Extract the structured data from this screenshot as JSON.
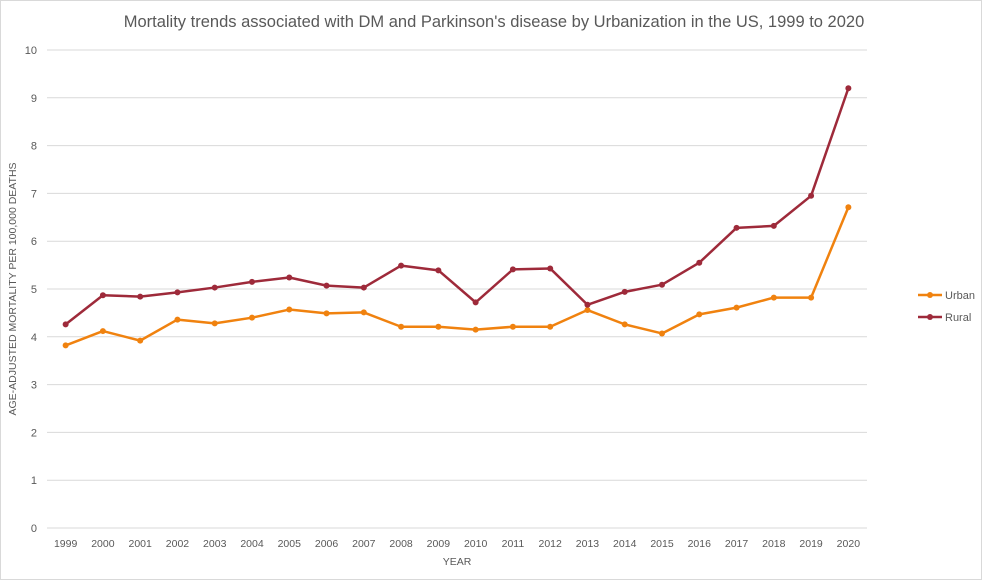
{
  "chart_data": {
    "type": "line",
    "title": "Mortality trends associated with DM and Parkinson's disease by Urbanization in the US, 1999 to 2020",
    "xlabel": "YEAR",
    "ylabel": "AGE-ADJUSTED MORTALITY  PER 100,000 DEATHS",
    "ylim": [
      0,
      10
    ],
    "yticks": [
      0,
      1,
      2,
      3,
      4,
      5,
      6,
      7,
      8,
      9,
      10
    ],
    "grid": true,
    "legend_position": "right",
    "categories": [
      "1999",
      "2000",
      "2001",
      "2002",
      "2003",
      "2004",
      "2005",
      "2006",
      "2007",
      "2008",
      "2009",
      "2010",
      "2011",
      "2012",
      "2013",
      "2014",
      "2015",
      "2016",
      "2017",
      "2018",
      "2019",
      "2020"
    ],
    "series": [
      {
        "name": "Urban",
        "color": "#F0820F",
        "values": [
          3.82,
          4.12,
          3.92,
          4.36,
          4.28,
          4.4,
          4.57,
          4.49,
          4.51,
          4.21,
          4.21,
          4.15,
          4.21,
          4.21,
          4.56,
          4.26,
          4.07,
          4.47,
          4.61,
          4.82,
          4.82,
          6.71
        ]
      },
      {
        "name": "Rural",
        "color": "#9E2A3A",
        "values": [
          4.26,
          4.87,
          4.84,
          4.93,
          5.03,
          5.15,
          5.24,
          5.07,
          5.03,
          5.49,
          5.39,
          4.72,
          5.41,
          5.43,
          4.67,
          4.94,
          5.09,
          5.55,
          6.28,
          6.32,
          6.95,
          9.2
        ]
      }
    ]
  }
}
